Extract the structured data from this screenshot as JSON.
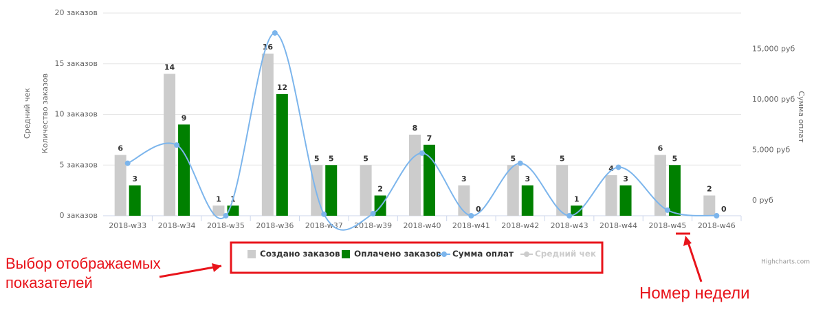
{
  "chart_data": {
    "type": "bar_line",
    "y_axis_titles": [
      "Средний чек",
      "Количество заказов"
    ],
    "y2_axis_title": "Сумма оплат",
    "categories": [
      "2018-w33",
      "2018-w34",
      "2018-w35",
      "2018-w36",
      "2018-w37",
      "2018-w39",
      "2018-w40",
      "2018-w41",
      "2018-w42",
      "2018-w43",
      "2018-w44",
      "2018-w45",
      "2018-w46"
    ],
    "series": [
      {
        "name": "Создано заказов",
        "type": "bar",
        "color": "#cccccc",
        "values": [
          6,
          14,
          1,
          16,
          5,
          5,
          8,
          3,
          5,
          5,
          4,
          6,
          2
        ]
      },
      {
        "name": "Оплачено заказов",
        "type": "bar",
        "color": "#008000",
        "values": [
          3,
          9,
          1,
          12,
          5,
          2,
          7,
          0,
          3,
          1,
          3,
          5,
          0
        ]
      },
      {
        "name": "Сумма оплат",
        "type": "line",
        "axis": "y2",
        "color": "#7cb5ec",
        "values": [
          3700,
          5500,
          -1500,
          16600,
          -1350,
          -1300,
          4700,
          -1500,
          3700,
          -1500,
          3300,
          -950,
          -1500
        ]
      },
      {
        "name": "Средний чек",
        "type": "line",
        "color": "#cccccc",
        "visible": false
      }
    ],
    "ylim": [
      0,
      20
    ],
    "yticks": [
      {
        "value": 0,
        "label": "0 заказов"
      },
      {
        "value": 5,
        "label": "5 заказов"
      },
      {
        "value": 10,
        "label": "10 заказов"
      },
      {
        "value": 15,
        "label": "15 заказов"
      },
      {
        "value": 20,
        "label": "20 заказов"
      }
    ],
    "y2lim": [
      -1500,
      18570
    ],
    "y2ticks": [
      {
        "value": 0,
        "label": "0 руб"
      },
      {
        "value": 5000,
        "label": "5,000 руб"
      },
      {
        "value": 10000,
        "label": "10,000 руб"
      },
      {
        "value": 15000,
        "label": "15,000 руб"
      }
    ],
    "grid": true,
    "credits": "Highcharts.com"
  },
  "annotations": {
    "legend_note": [
      "Выбор отображаемых",
      "показателей"
    ],
    "week_note": "Номер недели"
  }
}
